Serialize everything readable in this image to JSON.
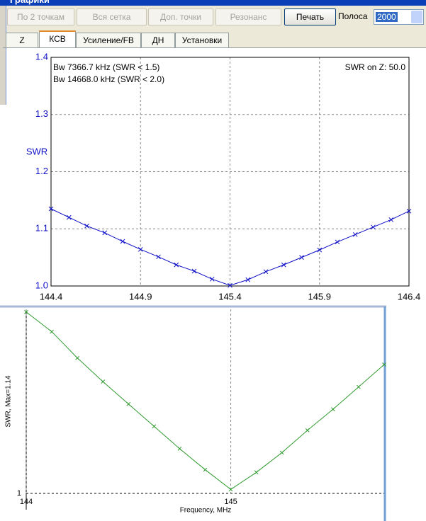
{
  "header": {
    "title": "Графики"
  },
  "toolbar": {
    "buttons": [
      {
        "label": "По 2 точкам",
        "disabled": true
      },
      {
        "label": "Вся сетка",
        "disabled": true
      },
      {
        "label": "Доп. точки",
        "disabled": true
      },
      {
        "label": "Резонанс",
        "disabled": true
      },
      {
        "label": "Печать",
        "disabled": false
      }
    ],
    "band_label": "Полоса",
    "band_value": "2000"
  },
  "tabs": [
    {
      "label": "Z",
      "active": false
    },
    {
      "label": "КСВ",
      "active": true
    },
    {
      "label": "Усиление/FB",
      "active": false
    },
    {
      "label": "ДН",
      "active": false
    },
    {
      "label": "Установки",
      "active": false
    }
  ],
  "chart_data": [
    {
      "type": "line",
      "y_label": "SWR",
      "annotations": [
        "Bw 7366.7 kHz (SWR < 1.5)",
        "Bw 14668.0 kHz (SWR < 2.0)",
        "SWR on Z: 50.0"
      ],
      "x": [
        144.4,
        144.5,
        144.6,
        144.7,
        144.8,
        144.9,
        145.0,
        145.1,
        145.2,
        145.3,
        145.4,
        145.5,
        145.6,
        145.7,
        145.8,
        145.9,
        146.0,
        146.1,
        146.2,
        146.3,
        146.4
      ],
      "series": [
        {
          "color": "#1010c8",
          "values": [
            1.135,
            1.12,
            1.105,
            1.093,
            1.078,
            1.064,
            1.051,
            1.037,
            1.026,
            1.012,
            1.001,
            1.011,
            1.025,
            1.037,
            1.05,
            1.063,
            1.077,
            1.09,
            1.103,
            1.116,
            1.131
          ]
        }
      ],
      "xlim": [
        144.4,
        146.4
      ],
      "ylim": [
        1,
        1.4
      ],
      "xticks": [
        144.4,
        144.9,
        145.4,
        145.9,
        146.4
      ],
      "yticks": [
        {
          "value": 1,
          "label": "1.0"
        },
        1.1,
        1.2,
        1.3,
        1.4
      ],
      "grid": true,
      "tick_color": "#1010c8"
    },
    {
      "type": "line",
      "x_label": "Frequency, MHz",
      "y_label": "SWR, Max=1.14",
      "x": [
        144.0,
        144.125,
        144.25,
        144.375,
        144.5,
        144.625,
        144.75,
        144.875,
        145.0,
        145.125,
        145.25,
        145.375,
        145.5,
        145.625,
        145.75
      ],
      "series": [
        {
          "color": "#2f9a2f",
          "values": [
            1.138,
            1.123,
            1.103,
            1.085,
            1.068,
            1.051,
            1.034,
            1.018,
            1.003,
            1.016,
            1.031,
            1.048,
            1.064,
            1.081,
            1.098
          ]
        }
      ],
      "xlim": [
        144,
        145.75
      ],
      "ylim": [
        1,
        1.14
      ],
      "xticks": [
        144,
        145
      ],
      "yticks": [
        1
      ],
      "grid": true,
      "tick_color": "#000000"
    }
  ]
}
